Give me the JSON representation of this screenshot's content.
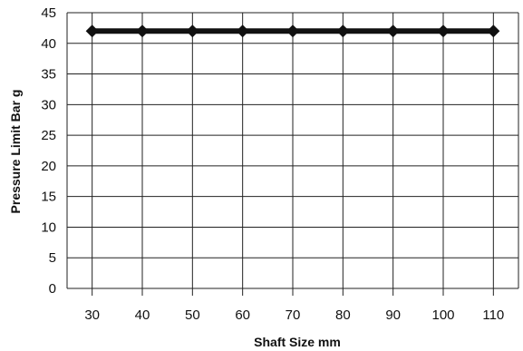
{
  "chart_data": {
    "type": "line",
    "title": "",
    "xlabel": "Shaft Size mm",
    "ylabel": "Pressure Limit Bar g",
    "x": [
      30,
      40,
      50,
      60,
      70,
      80,
      90,
      100,
      110
    ],
    "series": [
      {
        "values": [
          42,
          42,
          42,
          42,
          42,
          42,
          42,
          42,
          42
        ],
        "color": "#111111",
        "marker": "diamond"
      }
    ],
    "xlim": [
      25,
      115
    ],
    "ylim": [
      0,
      45
    ],
    "x_ticks": [
      30,
      40,
      50,
      60,
      70,
      80,
      90,
      100,
      110
    ],
    "y_ticks": [
      0,
      5,
      10,
      15,
      20,
      25,
      30,
      35,
      40,
      45
    ],
    "grid": true,
    "legend": "none"
  }
}
